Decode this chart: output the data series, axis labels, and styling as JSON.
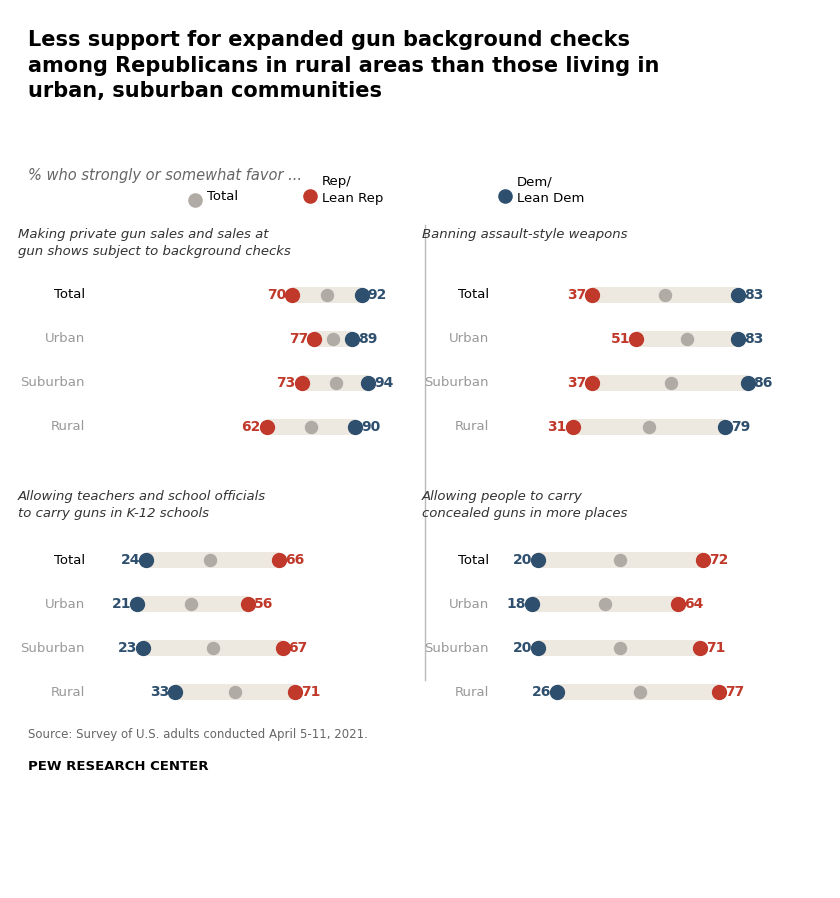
{
  "title": "Less support for expanded gun background checks\namong Republicans in rural areas than those living in\nurban, suburban communities",
  "subtitle": "% who strongly or somewhat favor ...",
  "source": "Source: Survey of U.S. adults conducted April 5-11, 2021.",
  "branding": "PEW RESEARCH CENTER",
  "colors": {
    "rep": "#c0392b",
    "dem": "#2e4f6e",
    "total": "#b0aba5",
    "bar_bg": "#ede8e0"
  },
  "sections": [
    {
      "title": "Making private gun sales and sales at\ngun shows subject to background checks",
      "rows": [
        {
          "label": "Total",
          "rep": 70,
          "total": 81,
          "dem": 92
        },
        {
          "label": "Urban",
          "rep": 77,
          "total": 83,
          "dem": 89
        },
        {
          "label": "Suburban",
          "rep": 73,
          "total": 84,
          "dem": 94
        },
        {
          "label": "Rural",
          "rep": 62,
          "total": 76,
          "dem": 90
        }
      ],
      "left_is_rep": true
    },
    {
      "title": "Banning assault-style weapons",
      "rows": [
        {
          "label": "Total",
          "rep": 37,
          "total": 60,
          "dem": 83
        },
        {
          "label": "Urban",
          "rep": 51,
          "total": 67,
          "dem": 83
        },
        {
          "label": "Suburban",
          "rep": 37,
          "total": 62,
          "dem": 86
        },
        {
          "label": "Rural",
          "rep": 31,
          "total": 55,
          "dem": 79
        }
      ],
      "left_is_rep": true
    },
    {
      "title": "Allowing teachers and school officials\nto carry guns in K-12 schools",
      "rows": [
        {
          "label": "Total",
          "rep": 66,
          "total": 44,
          "dem": 24
        },
        {
          "label": "Urban",
          "rep": 56,
          "total": 38,
          "dem": 21
        },
        {
          "label": "Suburban",
          "rep": 67,
          "total": 45,
          "dem": 23
        },
        {
          "label": "Rural",
          "rep": 71,
          "total": 52,
          "dem": 33
        }
      ],
      "left_is_rep": false
    },
    {
      "title": "Allowing people to carry\nconcealed guns in more places",
      "rows": [
        {
          "label": "Total",
          "rep": 72,
          "total": 46,
          "dem": 20
        },
        {
          "label": "Urban",
          "rep": 64,
          "total": 41,
          "dem": 18
        },
        {
          "label": "Suburban",
          "rep": 71,
          "total": 46,
          "dem": 20
        },
        {
          "label": "Rural",
          "rep": 77,
          "total": 52,
          "dem": 26
        }
      ],
      "left_is_rep": false
    }
  ]
}
